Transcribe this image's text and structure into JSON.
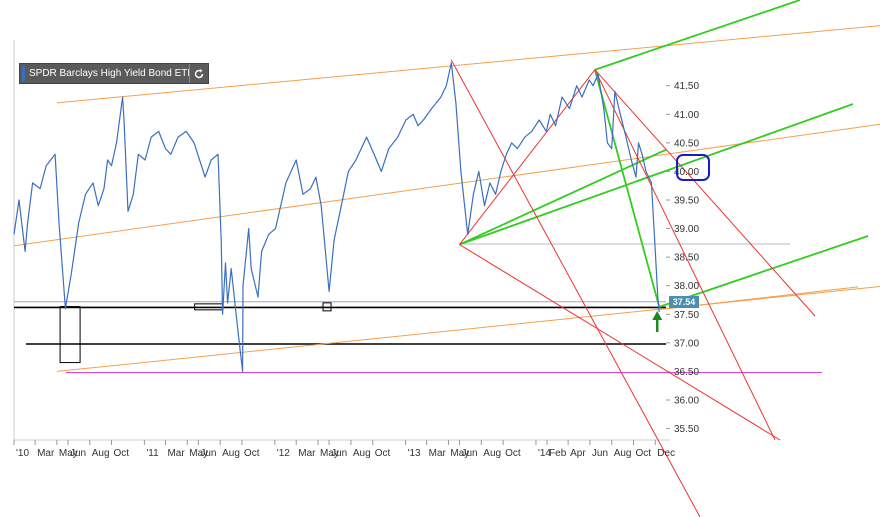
{
  "legend": {
    "label": "SPDR Barclays High Yield Bond ETF",
    "refresh_icon": "refresh-icon"
  },
  "price_badge": "37.54",
  "colors": {
    "price": "#3a6fc1",
    "orange": "#f5a04a",
    "green": "#33cc22",
    "red": "#ee3333",
    "magenta": "#cc33cc",
    "black": "#000000",
    "blue_marker": "#1a1acc",
    "green_arrow": "#1e8a1e",
    "badge": "#4a8fb0"
  },
  "chart_data": {
    "type": "line",
    "title": "SPDR Barclays High Yield Bond ETF",
    "xlabel": "",
    "ylabel": "",
    "ylim": [
      35.3,
      42.3
    ],
    "xlim": [
      "2010-01-01",
      "2014-12-31"
    ],
    "y_ticks": [
      "35.50",
      "36.00",
      "36.50",
      "37.00",
      "37.50",
      "38.00",
      "38.50",
      "39.00",
      "39.50",
      "40.00",
      "40.50",
      "41.00",
      "41.50"
    ],
    "x_ticks": [
      {
        "date": "2010-01-01",
        "label": "'10"
      },
      {
        "date": "2010-03-01",
        "label": "Mar"
      },
      {
        "date": "2010-05-01",
        "label": "May"
      },
      {
        "date": "2010-06-01",
        "label": "Jun"
      },
      {
        "date": "2010-08-01",
        "label": "Aug"
      },
      {
        "date": "2010-10-01",
        "label": "Oct"
      },
      {
        "date": "2011-01-01",
        "label": "'11"
      },
      {
        "date": "2011-03-01",
        "label": "Mar"
      },
      {
        "date": "2011-05-01",
        "label": "May"
      },
      {
        "date": "2011-06-01",
        "label": "Jun"
      },
      {
        "date": "2011-08-01",
        "label": "Aug"
      },
      {
        "date": "2011-10-01",
        "label": "Oct"
      },
      {
        "date": "2012-01-01",
        "label": "'12"
      },
      {
        "date": "2012-03-01",
        "label": "Mar"
      },
      {
        "date": "2012-05-01",
        "label": "May"
      },
      {
        "date": "2012-06-01",
        "label": "Jun"
      },
      {
        "date": "2012-08-01",
        "label": "Aug"
      },
      {
        "date": "2012-10-01",
        "label": "Oct"
      },
      {
        "date": "2013-01-01",
        "label": "'13"
      },
      {
        "date": "2013-03-01",
        "label": "Mar"
      },
      {
        "date": "2013-05-01",
        "label": "May"
      },
      {
        "date": "2013-06-01",
        "label": "Jun"
      },
      {
        "date": "2013-08-01",
        "label": "Aug"
      },
      {
        "date": "2013-10-01",
        "label": "Oct"
      },
      {
        "date": "2014-01-01",
        "label": "'14"
      },
      {
        "date": "2014-02-01",
        "label": "Feb"
      },
      {
        "date": "2014-04-01",
        "label": "Apr"
      },
      {
        "date": "2014-06-01",
        "label": "Jun"
      },
      {
        "date": "2014-08-01",
        "label": "Aug"
      },
      {
        "date": "2014-10-01",
        "label": "Oct"
      },
      {
        "date": "2014-12-01",
        "label": "Dec"
      }
    ],
    "grid": true,
    "legend_position": "top-left",
    "series": [
      {
        "name": "SPDR Barclays High Yield Bond ETF",
        "x": [
          "2010-01-01",
          "2010-01-15",
          "2010-02-01",
          "2010-02-08",
          "2010-02-22",
          "2010-03-15",
          "2010-04-01",
          "2010-04-26",
          "2010-05-07",
          "2010-05-25",
          "2010-06-10",
          "2010-07-01",
          "2010-07-20",
          "2010-08-10",
          "2010-08-25",
          "2010-09-10",
          "2010-09-20",
          "2010-10-01",
          "2010-10-15",
          "2010-11-01",
          "2010-11-05",
          "2010-11-16",
          "2010-12-01",
          "2010-12-15",
          "2011-01-03",
          "2011-01-20",
          "2011-02-10",
          "2011-03-01",
          "2011-03-16",
          "2011-04-05",
          "2011-04-28",
          "2011-05-20",
          "2011-06-20",
          "2011-07-07",
          "2011-07-26",
          "2011-08-04",
          "2011-08-08",
          "2011-08-16",
          "2011-08-22",
          "2011-09-01",
          "2011-09-20",
          "2011-10-03",
          "2011-10-04",
          "2011-10-20",
          "2011-10-27",
          "2011-11-15",
          "2011-11-25",
          "2011-12-15",
          "2012-01-03",
          "2012-02-01",
          "2012-03-01",
          "2012-03-20",
          "2012-04-10",
          "2012-04-25",
          "2012-05-10",
          "2012-06-01",
          "2012-06-15",
          "2012-07-05",
          "2012-07-25",
          "2012-08-15",
          "2012-09-14",
          "2012-10-05",
          "2012-10-25",
          "2012-11-15",
          "2012-12-10",
          "2013-01-02",
          "2013-01-22",
          "2013-02-05",
          "2013-02-20",
          "2013-03-15",
          "2013-04-10",
          "2013-04-25",
          "2013-05-09",
          "2013-05-22",
          "2013-06-05",
          "2013-06-24",
          "2013-07-10",
          "2013-07-25",
          "2013-08-10",
          "2013-08-25",
          "2013-09-10",
          "2013-09-25",
          "2013-10-10",
          "2013-10-25",
          "2013-11-10",
          "2013-12-01",
          "2013-12-20",
          "2014-01-10",
          "2014-01-30",
          "2014-02-10",
          "2014-02-25",
          "2014-03-15",
          "2014-04-05",
          "2014-04-25",
          "2014-05-10",
          "2014-05-30",
          "2014-06-10",
          "2014-06-24",
          "2014-07-10",
          "2014-07-20",
          "2014-08-01",
          "2014-08-10",
          "2014-08-25",
          "2014-09-10",
          "2014-09-25",
          "2014-10-08",
          "2014-10-15",
          "2014-10-25",
          "2014-11-05",
          "2014-11-20",
          "2014-12-01",
          "2014-12-08",
          "2014-12-12"
        ],
        "values": [
          38.9,
          39.5,
          38.6,
          39.1,
          39.8,
          39.7,
          40.1,
          40.3,
          39.1,
          37.6,
          38.2,
          39.1,
          39.6,
          39.8,
          39.4,
          39.7,
          40.2,
          40.1,
          40.5,
          41.3,
          40.9,
          39.3,
          39.6,
          40.3,
          40.2,
          40.6,
          40.7,
          40.4,
          40.3,
          40.6,
          40.7,
          40.5,
          39.9,
          40.2,
          40.3,
          38.8,
          37.5,
          38.4,
          37.7,
          38.3,
          37.2,
          36.5,
          38.0,
          39.0,
          38.3,
          37.8,
          38.6,
          38.9,
          39.0,
          39.8,
          40.2,
          39.6,
          39.7,
          39.9,
          39.4,
          37.9,
          38.8,
          39.4,
          40.0,
          40.2,
          40.6,
          40.3,
          40.0,
          40.4,
          40.6,
          40.9,
          41.0,
          40.8,
          40.9,
          41.1,
          41.3,
          41.5,
          41.9,
          41.2,
          40.0,
          38.9,
          39.6,
          40.0,
          39.4,
          39.8,
          39.6,
          40.0,
          40.3,
          40.5,
          40.4,
          40.6,
          40.7,
          40.9,
          40.7,
          41.0,
          40.8,
          41.3,
          41.1,
          41.5,
          41.3,
          41.6,
          41.5,
          41.7,
          41.1,
          40.5,
          40.4,
          41.4,
          41.0,
          40.6,
          40.2,
          39.9,
          40.5,
          40.3,
          40.0,
          39.8,
          38.6,
          37.8,
          37.54
        ]
      }
    ],
    "annotations": {
      "last_price": 37.54,
      "orange_lines": [
        {
          "x1": "2010-01-01",
          "y1": 38.7,
          "x2": "2014-12-31",
          "y2": 40.3
        },
        {
          "x1": "2010-05-01",
          "y1": 41.2,
          "x2": "2014-12-31",
          "y2": 42.2
        },
        {
          "x1": "2010-05-01",
          "y1": 36.5,
          "x2": "2014-12-31",
          "y2": 37.6
        }
      ]
    }
  }
}
